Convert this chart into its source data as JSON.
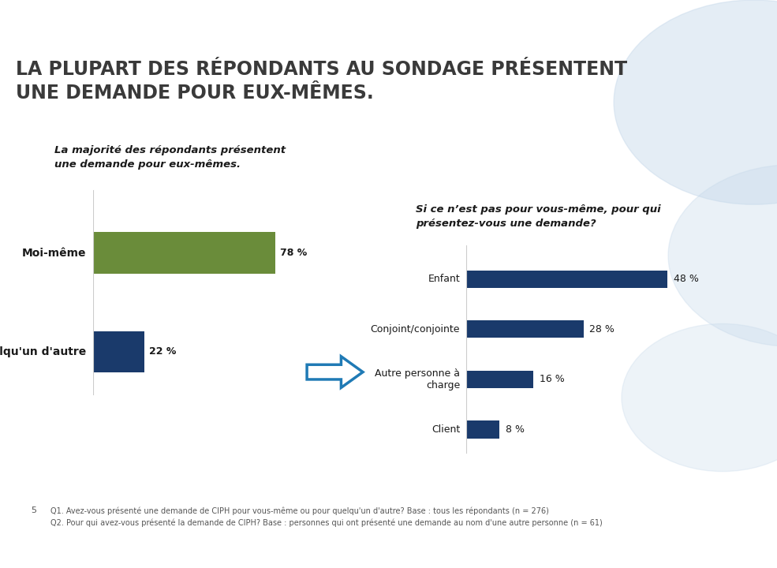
{
  "title_line1": "LA PLUPART DES RÉPONDANTS AU SONDAGE PRÉSENTENT",
  "title_line2": "UNE DEMANDE POUR EUX-MÊMES.",
  "header_bar_colors": [
    "#5a5a5a",
    "#1f7ab5",
    "#a0aab4"
  ],
  "blue_underline_color": "#1f7ab5",
  "chart1_subtitle_line1": "La majorité des répondants présentent",
  "chart1_subtitle_line2": "une demande pour eux-mêmes.",
  "chart1_categories": [
    "Moi-même",
    "Quelqu'un d'autre"
  ],
  "chart1_values": [
    78,
    22
  ],
  "chart1_colors": [
    "#6a8c3a",
    "#1a3a6b"
  ],
  "chart2_subtitle_line1": "Si ce n’est pas pour vous-même, pour qui",
  "chart2_subtitle_line2": "présentez-vous une demande?",
  "chart2_categories": [
    "Enfant",
    "Conjoint/conjointe",
    "Autre personne à\ncharge",
    "Client"
  ],
  "chart2_values": [
    48,
    28,
    16,
    8
  ],
  "chart2_color": "#1a3a6b",
  "footnote_number": "5",
  "footnote_line1": "Q1. Avez-vous présenté une demande de CIPH pour vous-même ou pour quelqu'un d'autre? Base : tous les répondants (n = 276)",
  "footnote_line2": "Q2. Pour qui avez-vous présenté la demande de CIPH? Base : personnes qui ont présenté une demande au nom d'une autre personne (n = 61)",
  "bg_color": "#ffffff",
  "title_color": "#3a3a3a",
  "subtitle_color": "#1a1a1a",
  "label_color": "#1a1a1a",
  "value_color": "#1a1a1a"
}
